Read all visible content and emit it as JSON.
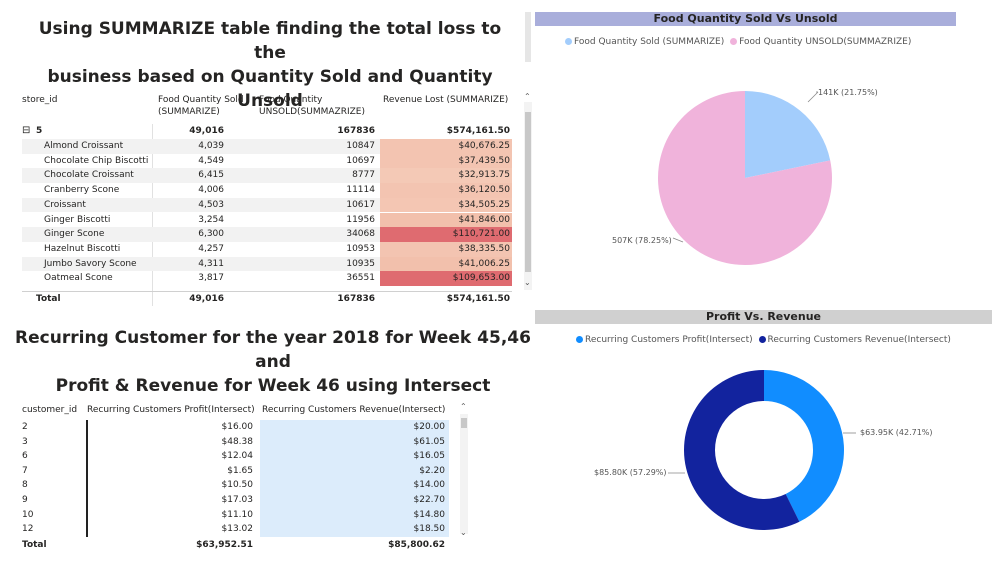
{
  "top_title": [
    "Using SUMMARIZE table finding the total loss to the",
    "business based on Quantity Sold and Quantity Unsold"
  ],
  "summarize_table": {
    "headers": {
      "store_id": "store_id",
      "sold": [
        "Food Quantity Sold",
        "(SUMMARIZE)"
      ],
      "unsold": [
        "Food Quantity",
        "UNSOLD(SUMMAZRIZE)"
      ],
      "revenue_lost": "Revenue Lost (SUMMARIZE)"
    },
    "group": {
      "expander": "⊟",
      "label": "5",
      "sold": "49,016",
      "unsold": "167836",
      "revenue_lost": "$574,161.50"
    },
    "rows": [
      {
        "name": "Almond Croissant",
        "sold": "4,039",
        "unsold": "10847",
        "revenue_lost": "$40,676.25",
        "heat": "#f3c4b1"
      },
      {
        "name": "Chocolate Chip Biscotti",
        "sold": "4,549",
        "unsold": "10697",
        "revenue_lost": "$37,439.50",
        "heat": "#f3c4b1"
      },
      {
        "name": "Chocolate Croissant",
        "sold": "6,415",
        "unsold": "8777",
        "revenue_lost": "$32,913.75",
        "heat": "#f4c9b6"
      },
      {
        "name": "Cranberry Scone",
        "sold": "4,006",
        "unsold": "11114",
        "revenue_lost": "$36,120.50",
        "heat": "#f3c4b1"
      },
      {
        "name": "Croissant",
        "sold": "4,503",
        "unsold": "10617",
        "revenue_lost": "$34,505.25",
        "heat": "#f4c6b3"
      },
      {
        "name": "Ginger Biscotti",
        "sold": "3,254",
        "unsold": "11956",
        "revenue_lost": "$41,846.00",
        "heat": "#f2c0ac"
      },
      {
        "name": "Ginger Scone",
        "sold": "6,300",
        "unsold": "34068",
        "revenue_lost": "$110,721.00",
        "heat": "#df6b70"
      },
      {
        "name": "Hazelnut Biscotti",
        "sold": "4,257",
        "unsold": "10953",
        "revenue_lost": "$38,335.50",
        "heat": "#f3c4b1"
      },
      {
        "name": "Jumbo Savory Scone",
        "sold": "4,311",
        "unsold": "10935",
        "revenue_lost": "$41,006.25",
        "heat": "#f2c0ac"
      },
      {
        "name": "Oatmeal Scone",
        "sold": "3,817",
        "unsold": "36551",
        "revenue_lost": "$109,653.00",
        "heat": "#df6b70"
      }
    ],
    "total": {
      "label": "Total",
      "sold": "49,016",
      "unsold": "167836",
      "revenue_lost": "$574,161.50"
    }
  },
  "bottom_title": [
    "Recurring Customer for the year 2018 for Week 45,46 and",
    "Profit & Revenue for Week 46 using Intersect"
  ],
  "customer_table": {
    "headers": {
      "customer_id": "customer_id",
      "profit": "Recurring Customers Profit(Intersect)",
      "revenue": "Recurring Customers Revenue(Intersect)"
    },
    "rows": [
      {
        "id": "2",
        "profit": "$16.00",
        "revenue": "$20.00"
      },
      {
        "id": "3",
        "profit": "$48.38",
        "revenue": "$61.05"
      },
      {
        "id": "6",
        "profit": "$12.04",
        "revenue": "$16.05"
      },
      {
        "id": "7",
        "profit": "$1.65",
        "revenue": "$2.20"
      },
      {
        "id": "8",
        "profit": "$10.50",
        "revenue": "$14.00"
      },
      {
        "id": "9",
        "profit": "$17.03",
        "revenue": "$22.70"
      },
      {
        "id": "10",
        "profit": "$11.10",
        "revenue": "$14.80"
      },
      {
        "id": "12",
        "profit": "$13.02",
        "revenue": "$18.50"
      }
    ],
    "total": {
      "label": "Total",
      "profit": "$63,952.51",
      "revenue": "$85,800.62"
    }
  },
  "pie_chart": {
    "title": "Food Quantity Sold Vs Unsold",
    "legend": [
      {
        "label": "Food Quantity Sold (SUMMARIZE)",
        "color": "#a3cdfc"
      },
      {
        "label": "Food Quantity UNSOLD(SUMMAZRIZE)",
        "color": "#f0b3db"
      }
    ],
    "labels": {
      "sold": "141K (21.75%)",
      "unsold": "507K (78.25%)"
    }
  },
  "donut_chart": {
    "title": "Profit Vs. Revenue",
    "legend": [
      {
        "label": "Recurring Customers Profit(Intersect)",
        "color": "#118dff"
      },
      {
        "label": "Recurring Customers Revenue(Intersect)",
        "color": "#12239e"
      }
    ],
    "labels": {
      "profit": "$63.95K (42.71%)",
      "revenue": "$85.80K (57.29%)"
    }
  },
  "chart_data": [
    {
      "type": "pie",
      "title": "Food Quantity Sold Vs Unsold",
      "categories": [
        "Food Quantity Sold (SUMMARIZE)",
        "Food Quantity UNSOLD(SUMMAZRIZE)"
      ],
      "values": [
        141000,
        507000
      ],
      "percent": [
        21.75,
        78.25
      ],
      "colors": [
        "#a3cdfc",
        "#f0b3db"
      ],
      "legend": "top-left"
    },
    {
      "type": "pie",
      "title": "Profit Vs. Revenue",
      "categories": [
        "Recurring Customers Profit(Intersect)",
        "Recurring Customers Revenue(Intersect)"
      ],
      "values": [
        63950,
        85800
      ],
      "percent": [
        42.71,
        57.29
      ],
      "colors": [
        "#118dff",
        "#12239e"
      ],
      "legend": "top-left"
    }
  ]
}
